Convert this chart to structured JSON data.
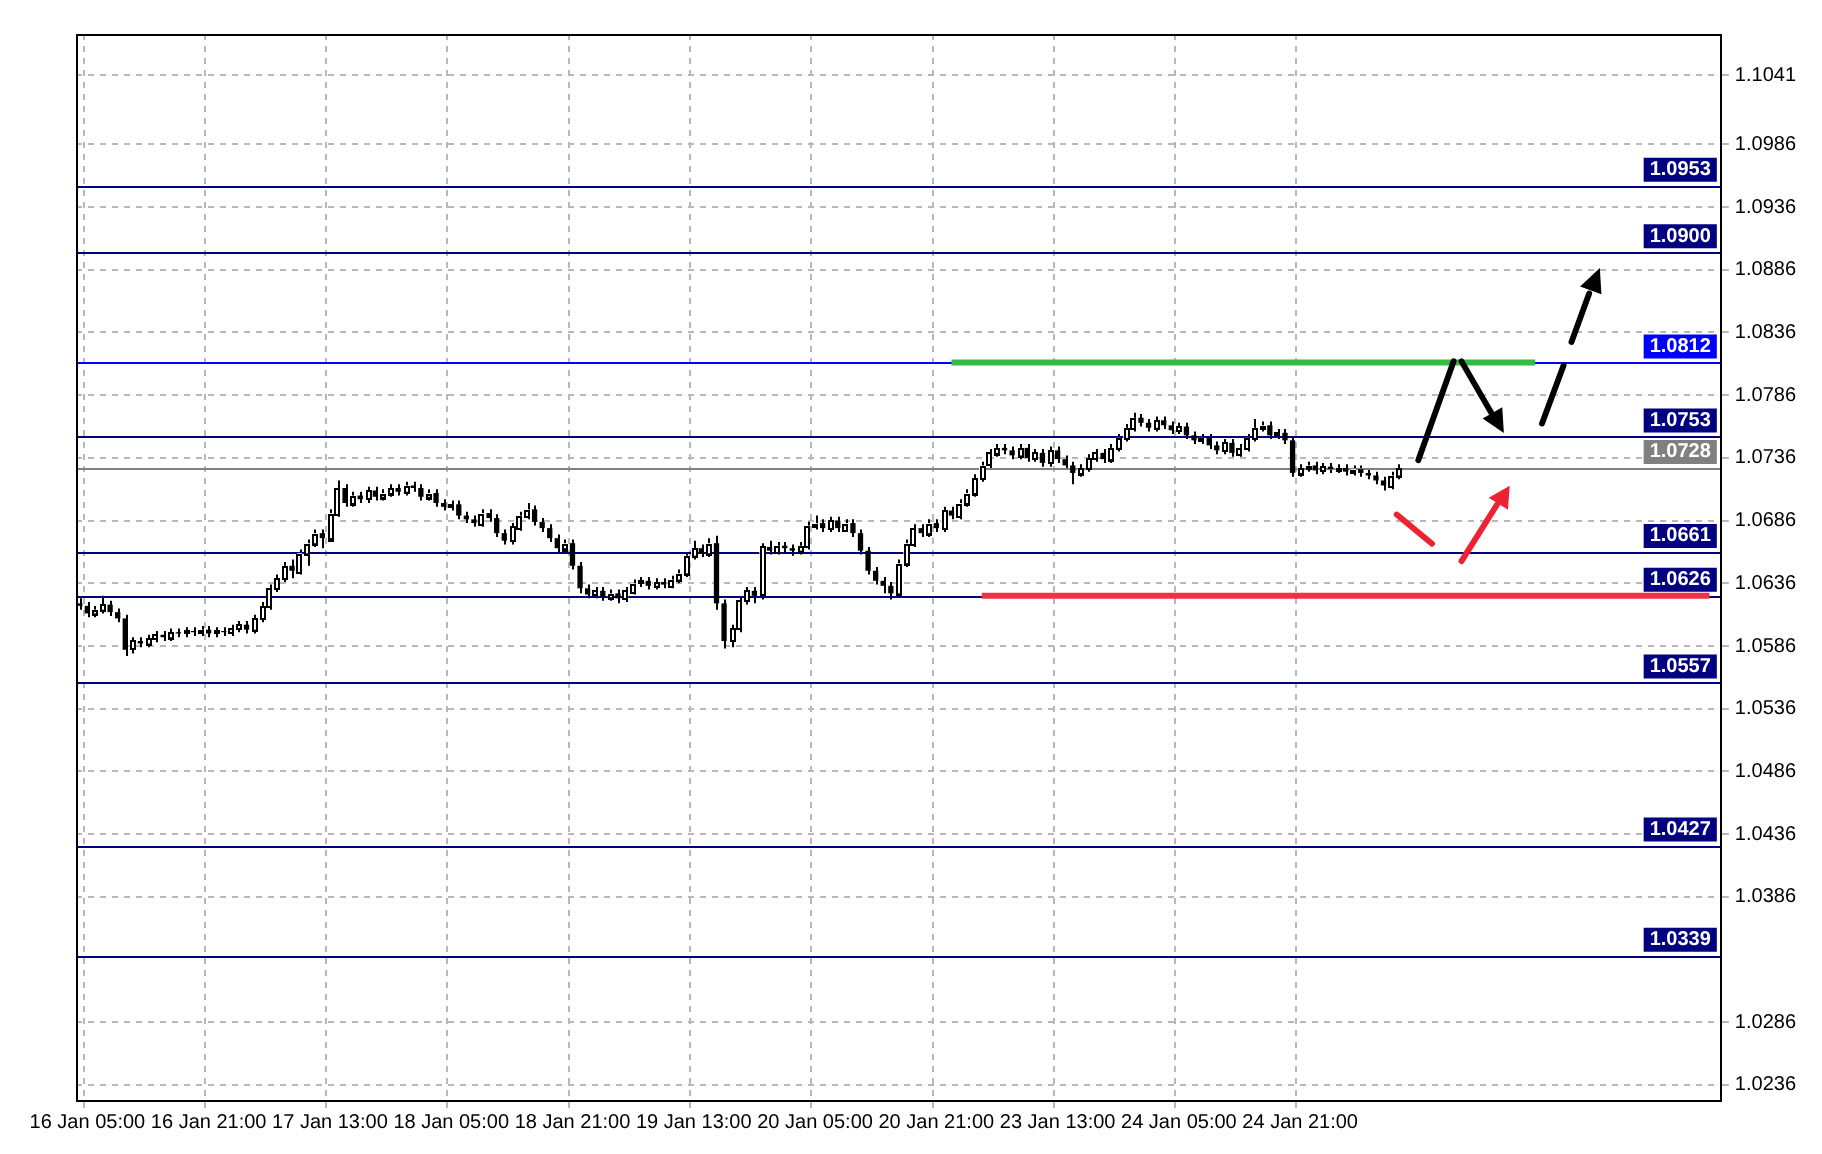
{
  "chart_data": {
    "type": "candlestick",
    "color": "#000000",
    "colors": [
      "#000000",
      "#000000",
      "#ffffff",
      "#ffffff",
      "#000000",
      "#000000",
      "#000000",
      "#ffffff",
      "#000000",
      "#ffffff",
      "#ffffff",
      "#000000",
      "#ffffff",
      "#000000",
      "#ffffff",
      "#000000",
      "#ffffff",
      "#000000",
      "#ffffff",
      "#000000",
      "#ffffff",
      "#ffffff",
      "#000000",
      "#ffffff",
      "#ffffff",
      "#ffffff",
      "#ffffff",
      "#ffffff",
      "#000000",
      "#ffffff",
      "#ffffff",
      "#ffffff",
      "#000000",
      "#ffffff",
      "#ffffff",
      "#000000",
      "#ffffff",
      "#000000",
      "#ffffff",
      "#000000",
      "#ffffff",
      "#ffffff",
      "#000000",
      "#ffffff",
      "#000000",
      "#000000",
      "#ffffff",
      "#000000",
      "#000000",
      "#ffffff",
      "#000000",
      "#000000",
      "#000000",
      "#ffffff",
      "#000000",
      "#000000",
      "#000000",
      "#ffffff",
      "#ffffff",
      "#ffffff",
      "#000000",
      "#000000",
      "#000000",
      "#000000",
      "#ffffff",
      "#000000",
      "#000000",
      "#000000",
      "#ffffff",
      "#000000",
      "#ffffff",
      "#000000",
      "#ffffff",
      "#ffffff",
      "#ffffff",
      "#000000",
      "#ffffff",
      "#000000",
      "#ffffff",
      "#ffffff",
      "#ffffff",
      "#ffffff",
      "#000000",
      "#ffffff",
      "#000000",
      "#000000",
      "#ffffff",
      "#ffffff",
      "#ffffff",
      "#000000",
      "#ffffff",
      "#000000",
      "#ffffff",
      "#000000",
      "#000000",
      "#ffffff",
      "#ffffff",
      "#ffffff",
      "#000000",
      "#ffffff",
      "#000000",
      "#ffffff",
      "#000000",
      "#000000",
      "#000000",
      "#000000",
      "#000000",
      "#000000",
      "#ffffff",
      "#ffffff",
      "#ffffff",
      "#000000",
      "#ffffff",
      "#000000",
      "#ffffff",
      "#000000",
      "#ffffff",
      "#ffffff",
      "#ffffff",
      "#ffffff",
      "#ffffff",
      "#ffffff",
      "#000000",
      "#000000",
      "#ffffff",
      "#000000",
      "#ffffff",
      "#000000",
      "#ffffff",
      "#000000",
      "#000000",
      "#000000",
      "#ffffff",
      "#ffffff",
      "#ffffff",
      "#000000",
      "#ffffff",
      "#ffffff",
      "#ffffff",
      "#ffffff",
      "#000000",
      "#000000",
      "#ffffff",
      "#000000",
      "#000000",
      "#ffffff",
      "#000000",
      "#000000",
      "#ffffff",
      "#000000",
      "#000000",
      "#ffffff",
      "#000000",
      "#ffffff",
      "#ffffff",
      "#ffffff",
      "#ffffff",
      "#000000",
      "#ffffff",
      "#000000",
      "#000000",
      "#ffffff",
      "#ffffff",
      "#000000",
      "#ffffff",
      "#000000",
      "#ffffff",
      "#000000",
      "#ffffff",
      "#000000",
      "#000000",
      "#000000",
      "#000000",
      "#ffffff",
      "#ffffff",
      null,
      null,
      null,
      null,
      null,
      null,
      null,
      null,
      null,
      null,
      null,
      null,
      null,
      null,
      null,
      null,
      null,
      null,
      null,
      null,
      null,
      null,
      null,
      null,
      null,
      null,
      null,
      null,
      null,
      null,
      null,
      null,
      null,
      null,
      null,
      null,
      null,
      null,
      null,
      null,
      null,
      null
    ],
    "categories": [
      null,
      "16 Jan 05:00",
      null,
      null,
      null,
      null,
      null,
      null,
      null,
      null,
      null,
      null,
      null,
      null,
      null,
      null,
      null,
      "16 Jan 21:00",
      null,
      null,
      null,
      null,
      null,
      null,
      null,
      null,
      null,
      null,
      null,
      null,
      null,
      null,
      null,
      "17 Jan 13:00",
      null,
      null,
      null,
      null,
      null,
      null,
      null,
      null,
      null,
      null,
      null,
      null,
      null,
      null,
      null,
      "18 Jan 05:00",
      null,
      null,
      null,
      null,
      null,
      null,
      null,
      null,
      null,
      null,
      null,
      null,
      null,
      null,
      null,
      "18 Jan 21:00",
      null,
      null,
      null,
      null,
      null,
      null,
      null,
      null,
      null,
      null,
      null,
      null,
      null,
      null,
      null,
      "19 Jan 13:00",
      null,
      null,
      null,
      null,
      null,
      null,
      null,
      null,
      null,
      null,
      null,
      null,
      null,
      null,
      null,
      "20 Jan 05:00",
      null,
      null,
      null,
      null,
      null,
      null,
      null,
      null,
      null,
      null,
      null,
      null,
      null,
      null,
      null,
      "20 Jan 21:00",
      null,
      null,
      null,
      null,
      null,
      null,
      null,
      null,
      null,
      null,
      null,
      null,
      null,
      null,
      null,
      "23 Jan 13:00",
      null,
      null,
      null,
      null,
      null,
      null,
      null,
      null,
      null,
      null,
      null,
      null,
      null,
      null,
      null,
      "24 Jan 05:00",
      null,
      null,
      null,
      null,
      null,
      null,
      null,
      null,
      null,
      null,
      null,
      null,
      null,
      null,
      null,
      "24 Jan 21:00",
      null,
      null,
      null,
      null,
      null,
      null,
      null,
      null,
      null,
      null,
      null,
      null,
      null,
      null,
      null,
      null,
      null,
      null,
      null,
      null,
      null,
      null,
      null,
      null,
      null,
      null,
      null,
      null,
      null,
      null,
      null,
      null,
      null,
      null,
      null,
      null,
      null,
      null,
      null,
      null,
      null,
      null,
      null,
      null,
      null,
      null,
      null,
      null,
      null,
      null,
      null,
      null,
      null,
      null,
      null
    ],
    "ohlc": [
      [
        1.062,
        1.0624,
        1.0615,
        1.0618
      ],
      [
        1.0618,
        1.0621,
        1.0609,
        1.0612
      ],
      [
        1.0612,
        1.0618,
        1.0609,
        1.0615
      ],
      [
        1.0615,
        1.0626,
        1.0612,
        1.0619
      ],
      [
        1.0619,
        1.0622,
        1.061,
        1.0613
      ],
      [
        1.0613,
        1.0616,
        1.0605,
        1.0608
      ],
      [
        1.0608,
        1.0611,
        1.0578,
        1.0583
      ],
      [
        1.0583,
        1.0593,
        1.058,
        1.059
      ],
      [
        1.059,
        1.0593,
        1.0585,
        1.0588
      ],
      [
        1.0588,
        1.0595,
        1.0585,
        1.0592
      ],
      [
        1.0592,
        1.0598,
        1.0589,
        1.0595
      ],
      [
        1.0595,
        1.0598,
        1.059,
        1.0593
      ],
      [
        1.0593,
        1.06,
        1.059,
        1.0597
      ],
      [
        1.0597,
        1.06,
        1.0593,
        1.0596
      ],
      [
        1.0596,
        1.0601,
        1.0593,
        1.0598
      ],
      [
        1.0598,
        1.0601,
        1.0594,
        1.0597
      ],
      [
        1.0597,
        1.0602,
        1.0594,
        1.0599
      ],
      [
        1.0599,
        1.0602,
        1.0593,
        1.0596
      ],
      [
        1.0596,
        1.0601,
        1.0593,
        1.0598
      ],
      [
        1.0598,
        1.0601,
        1.0594,
        1.0597
      ],
      [
        1.0597,
        1.0603,
        1.0594,
        1.06
      ],
      [
        1.06,
        1.0606,
        1.0597,
        1.0603
      ],
      [
        1.0603,
        1.0606,
        1.0596,
        1.0599
      ],
      [
        1.0599,
        1.0611,
        1.0596,
        1.0608
      ],
      [
        1.0608,
        1.0621,
        1.0605,
        1.0618
      ],
      [
        1.0618,
        1.0635,
        1.0615,
        1.0632
      ],
      [
        1.0632,
        1.0643,
        1.0629,
        1.064
      ],
      [
        1.064,
        1.0653,
        1.0637,
        1.065
      ],
      [
        1.065,
        1.0655,
        1.064,
        1.0646
      ],
      [
        1.0646,
        1.0663,
        1.0643,
        1.066
      ],
      [
        1.066,
        1.0671,
        1.065,
        1.0668
      ],
      [
        1.0668,
        1.0679,
        1.0665,
        1.0676
      ],
      [
        1.0676,
        1.0679,
        1.0664,
        1.0672
      ],
      [
        1.0672,
        1.0695,
        1.0669,
        1.0692
      ],
      [
        1.0692,
        1.0718,
        1.0689,
        1.0712
      ],
      [
        1.0712,
        1.0715,
        1.0697,
        1.07
      ],
      [
        1.07,
        1.0709,
        1.0697,
        1.0706
      ],
      [
        1.0706,
        1.0709,
        1.07,
        1.0703
      ],
      [
        1.0703,
        1.0713,
        1.07,
        1.071
      ],
      [
        1.071,
        1.0713,
        1.0702,
        1.0705
      ],
      [
        1.0705,
        1.0711,
        1.0702,
        1.0708
      ],
      [
        1.0708,
        1.0715,
        1.0705,
        1.0712
      ],
      [
        1.0712,
        1.0715,
        1.0706,
        1.0709
      ],
      [
        1.0709,
        1.0717,
        1.0706,
        1.0714
      ],
      [
        1.0714,
        1.0717,
        1.0709,
        1.0712
      ],
      [
        1.0712,
        1.0715,
        1.0702,
        1.0705
      ],
      [
        1.0705,
        1.0711,
        1.0702,
        1.0708
      ],
      [
        1.0708,
        1.0711,
        1.0697,
        1.07
      ],
      [
        1.07,
        1.0703,
        1.0694,
        1.0697
      ],
      [
        1.0697,
        1.0702,
        1.0694,
        1.0699
      ],
      [
        1.0699,
        1.0702,
        1.0687,
        1.069
      ],
      [
        1.069,
        1.0693,
        1.0684,
        1.0687
      ],
      [
        1.0687,
        1.069,
        1.0681,
        1.0684
      ],
      [
        1.0684,
        1.0695,
        1.0681,
        1.0692
      ],
      [
        1.0692,
        1.0695,
        1.0685,
        1.0688
      ],
      [
        1.0688,
        1.0691,
        1.0673,
        1.0676
      ],
      [
        1.0676,
        1.0679,
        1.0667,
        1.067
      ],
      [
        1.067,
        1.0684,
        1.0667,
        1.0681
      ],
      [
        1.0681,
        1.0693,
        1.0678,
        1.069
      ],
      [
        1.069,
        1.07,
        1.0687,
        1.0695
      ],
      [
        1.0695,
        1.0698,
        1.0682,
        1.0685
      ],
      [
        1.0685,
        1.0688,
        1.0677,
        1.068
      ],
      [
        1.068,
        1.0683,
        1.0669,
        1.0672
      ],
      [
        1.0672,
        1.0675,
        1.0661,
        1.0664
      ],
      [
        1.0664,
        1.0671,
        1.0661,
        1.0668
      ],
      [
        1.0668,
        1.0671,
        1.0647,
        1.065
      ],
      [
        1.065,
        1.0653,
        1.0628,
        1.0632
      ],
      [
        1.0632,
        1.0635,
        1.0624,
        1.0627
      ],
      [
        1.0627,
        1.0633,
        1.0624,
        1.063
      ],
      [
        1.063,
        1.0633,
        1.0622,
        1.0625
      ],
      [
        1.0625,
        1.0631,
        1.0622,
        1.0628
      ],
      [
        1.0628,
        1.0631,
        1.062,
        1.0624
      ],
      [
        1.0624,
        1.0633,
        1.0621,
        1.063
      ],
      [
        1.063,
        1.0639,
        1.0627,
        1.0636
      ],
      [
        1.0636,
        1.0641,
        1.0633,
        1.0638
      ],
      [
        1.0638,
        1.0641,
        1.0631,
        1.0634
      ],
      [
        1.0634,
        1.064,
        1.0631,
        1.0637
      ],
      [
        1.0637,
        1.064,
        1.0632,
        1.0635
      ],
      [
        1.0635,
        1.0642,
        1.0632,
        1.0639
      ],
      [
        1.0639,
        1.0647,
        1.0636,
        1.0644
      ],
      [
        1.0644,
        1.0661,
        1.0641,
        1.0658
      ],
      [
        1.0658,
        1.067,
        1.0655,
        1.0664
      ],
      [
        1.0664,
        1.0667,
        1.0657,
        1.066
      ],
      [
        1.066,
        1.0672,
        1.0657,
        1.0668
      ],
      [
        1.0668,
        1.0674,
        1.0615,
        1.062
      ],
      [
        1.062,
        1.0623,
        1.0584,
        1.059
      ],
      [
        1.059,
        1.0603,
        1.0585,
        1.06
      ],
      [
        1.06,
        1.0625,
        1.0597,
        1.0622
      ],
      [
        1.0622,
        1.0633,
        1.0619,
        1.063
      ],
      [
        1.063,
        1.0633,
        1.062,
        1.0626
      ],
      [
        1.0626,
        1.0668,
        1.0623,
        1.0665
      ],
      [
        1.0665,
        1.067,
        1.0659,
        1.0662
      ],
      [
        1.0662,
        1.0669,
        1.0659,
        1.0666
      ],
      [
        1.0666,
        1.0669,
        1.0661,
        1.0664
      ],
      [
        1.0664,
        1.0667,
        1.0658,
        1.0662
      ],
      [
        1.0662,
        1.0669,
        1.0659,
        1.0666
      ],
      [
        1.0666,
        1.0685,
        1.0663,
        1.0682
      ],
      [
        1.0682,
        1.069,
        1.0679,
        1.0684
      ],
      [
        1.0684,
        1.0687,
        1.0677,
        1.068
      ],
      [
        1.068,
        1.0689,
        1.0677,
        1.0686
      ],
      [
        1.0686,
        1.0689,
        1.0677,
        1.068
      ],
      [
        1.068,
        1.0687,
        1.0677,
        1.0684
      ],
      [
        1.0684,
        1.0687,
        1.0673,
        1.0676
      ],
      [
        1.0676,
        1.0679,
        1.0659,
        1.0662
      ],
      [
        1.0662,
        1.0665,
        1.0643,
        1.0646
      ],
      [
        1.0646,
        1.0649,
        1.0635,
        1.0638
      ],
      [
        1.0638,
        1.0641,
        1.0628,
        1.0634
      ],
      [
        1.0634,
        1.0637,
        1.0623,
        1.0628
      ],
      [
        1.0628,
        1.0655,
        1.0625,
        1.0652
      ],
      [
        1.0652,
        1.0671,
        1.0649,
        1.0668
      ],
      [
        1.0668,
        1.0683,
        1.0665,
        1.068
      ],
      [
        1.068,
        1.0683,
        1.0673,
        1.0676
      ],
      [
        1.0676,
        1.0687,
        1.0673,
        1.0684
      ],
      [
        1.0684,
        1.0687,
        1.0677,
        1.068
      ],
      [
        1.068,
        1.0697,
        1.0677,
        1.0694
      ],
      [
        1.0694,
        1.0697,
        1.0687,
        1.069
      ],
      [
        1.069,
        1.0703,
        1.0687,
        1.07
      ],
      [
        1.07,
        1.0711,
        1.0697,
        1.0708
      ],
      [
        1.0708,
        1.0723,
        1.0705,
        1.072
      ],
      [
        1.072,
        1.0733,
        1.0717,
        1.073
      ],
      [
        1.073,
        1.0743,
        1.0727,
        1.074
      ],
      [
        1.074,
        1.0747,
        1.0737,
        1.0744
      ],
      [
        1.0744,
        1.0747,
        1.0739,
        1.0742
      ],
      [
        1.0742,
        1.0745,
        1.0735,
        1.0738
      ],
      [
        1.0738,
        1.0747,
        1.0735,
        1.0744
      ],
      [
        1.0744,
        1.0747,
        1.0733,
        1.0736
      ],
      [
        1.0736,
        1.0743,
        1.0733,
        1.074
      ],
      [
        1.074,
        1.0743,
        1.0729,
        1.0732
      ],
      [
        1.0732,
        1.0745,
        1.0729,
        1.0742
      ],
      [
        1.0742,
        1.0745,
        1.0732,
        1.0735
      ],
      [
        1.0735,
        1.0738,
        1.0727,
        1.073
      ],
      [
        1.073,
        1.0733,
        1.0715,
        1.0724
      ],
      [
        1.0724,
        1.0731,
        1.0721,
        1.0728
      ],
      [
        1.0728,
        1.0739,
        1.0725,
        1.0736
      ],
      [
        1.0736,
        1.0743,
        1.0733,
        1.074
      ],
      [
        1.074,
        1.0743,
        1.0732,
        1.0735
      ],
      [
        1.0735,
        1.0747,
        1.0732,
        1.0744
      ],
      [
        1.0744,
        1.0755,
        1.0741,
        1.0752
      ],
      [
        1.0752,
        1.0763,
        1.0749,
        1.076
      ],
      [
        1.076,
        1.0772,
        1.0757,
        1.0768
      ],
      [
        1.0768,
        1.0771,
        1.0761,
        1.0764
      ],
      [
        1.0764,
        1.0767,
        1.0757,
        1.076
      ],
      [
        1.076,
        1.0769,
        1.0757,
        1.0766
      ],
      [
        1.0766,
        1.0769,
        1.0759,
        1.0762
      ],
      [
        1.0762,
        1.0765,
        1.0755,
        1.0758
      ],
      [
        1.0758,
        1.0764,
        1.0755,
        1.0761
      ],
      [
        1.0761,
        1.0764,
        1.0751,
        1.0754
      ],
      [
        1.0754,
        1.0757,
        1.0747,
        1.075
      ],
      [
        1.075,
        1.0755,
        1.0747,
        1.0752
      ],
      [
        1.0752,
        1.0755,
        1.0743,
        1.0746
      ],
      [
        1.0746,
        1.0749,
        1.0739,
        1.0742
      ],
      [
        1.0742,
        1.0751,
        1.0739,
        1.0748
      ],
      [
        1.0748,
        1.0751,
        1.0737,
        1.074
      ],
      [
        1.074,
        1.0747,
        1.0737,
        1.0744
      ],
      [
        1.0744,
        1.0755,
        1.0741,
        1.0752
      ],
      [
        1.0752,
        1.0767,
        1.0749,
        1.076
      ],
      [
        1.076,
        1.0765,
        1.0757,
        1.0762
      ],
      [
        1.0762,
        1.0765,
        1.0751,
        1.0754
      ],
      [
        1.0754,
        1.0759,
        1.0751,
        1.0756
      ],
      [
        1.0756,
        1.0759,
        1.0747,
        1.075
      ],
      [
        1.075,
        1.0753,
        1.0721,
        1.0724
      ],
      [
        1.0724,
        1.0731,
        1.0721,
        1.0728
      ],
      [
        1.0728,
        1.0733,
        1.0725,
        1.073
      ],
      [
        1.073,
        1.0733,
        1.0723,
        1.0726
      ],
      [
        1.0726,
        1.0732,
        1.0723,
        1.0729
      ],
      [
        1.0729,
        1.0732,
        1.0724,
        1.0727
      ],
      [
        1.0727,
        1.0731,
        1.0724,
        1.0728
      ],
      [
        1.0728,
        1.0731,
        1.0722,
        1.0725
      ],
      [
        1.0725,
        1.073,
        1.0722,
        1.0727
      ],
      [
        1.0727,
        1.073,
        1.0721,
        1.0724
      ],
      [
        1.0724,
        1.0727,
        1.0719,
        1.0722
      ],
      [
        1.0722,
        1.0725,
        1.0715,
        1.0718
      ],
      [
        1.0718,
        1.0721,
        1.071,
        1.0714
      ],
      [
        1.0714,
        1.0725,
        1.0711,
        1.0722
      ],
      [
        1.0722,
        1.0731,
        1.0719,
        1.0728
      ],
      null,
      null,
      null,
      null,
      null,
      null,
      null,
      null,
      null,
      null,
      null,
      null,
      null,
      null,
      null,
      null,
      null,
      null,
      null,
      null,
      null,
      null,
      null,
      null,
      null,
      null,
      null,
      null,
      null,
      null,
      null,
      null,
      null,
      null,
      null,
      null,
      null,
      null,
      null,
      null,
      null,
      null
    ],
    "series": [
      {
        "type": "line",
        "color": "#33bb44",
        "values": [
          null,
          null,
          null,
          null,
          null,
          null,
          null,
          null,
          null,
          null,
          null,
          null,
          null,
          null,
          null,
          null,
          null,
          null,
          null,
          null,
          null,
          null,
          null,
          null,
          null,
          null,
          null,
          null,
          null,
          null,
          null,
          null,
          null,
          null,
          null,
          null,
          null,
          null,
          null,
          null,
          null,
          null,
          null,
          null,
          null,
          null,
          null,
          null,
          null,
          null,
          null,
          null,
          null,
          null,
          null,
          null,
          null,
          null,
          null,
          null,
          null,
          null,
          null,
          null,
          null,
          null,
          null,
          null,
          null,
          null,
          null,
          null,
          null,
          null,
          null,
          null,
          null,
          null,
          null,
          null,
          null,
          null,
          null,
          null,
          null,
          null,
          null,
          null,
          null,
          null,
          null,
          null,
          null,
          null,
          null,
          null,
          null,
          null,
          null,
          null,
          null,
          null,
          null,
          null,
          null,
          null,
          null,
          null,
          null,
          null,
          null,
          null,
          null,
          null,
          null,
          1.0812,
          1.0812,
          1.0812,
          1.0812,
          1.0812,
          1.0812,
          1.0812,
          1.0812,
          1.0812,
          1.0812,
          1.0812,
          1.0812,
          1.0812,
          1.0812,
          1.0812,
          1.0812,
          1.0812,
          1.0812,
          1.0812,
          1.0812,
          1.0812,
          1.0812,
          1.0812,
          1.0812,
          1.0812,
          1.0812,
          1.0812,
          1.0812,
          1.0812,
          1.0812,
          1.0812,
          1.0812,
          1.0812,
          1.0812,
          1.0812,
          1.0812,
          1.0812,
          1.0812,
          1.0812,
          1.0812,
          1.0812,
          1.0812,
          1.0812,
          1.0812,
          1.0812,
          1.0812,
          1.0812,
          1.0812,
          1.0812,
          1.0812,
          1.0812,
          1.0812,
          1.0812,
          1.0812,
          1.0812,
          1.0812,
          1.0812,
          1.0812,
          1.0812,
          1.0812,
          1.0812,
          1.0812,
          1.0812,
          1.0812,
          1.0812,
          1.0812,
          1.0812,
          1.0812,
          1.0812,
          1.0812,
          1.0812,
          1.0812,
          1.0812,
          1.0812,
          1.0812,
          1.0812,
          1.0812,
          1.0812,
          null,
          null,
          null,
          null,
          null,
          null,
          null,
          null,
          null,
          null,
          null,
          null,
          null,
          null,
          null,
          null,
          null,
          null,
          null,
          null,
          null,
          null,
          null,
          null
        ]
      },
      {
        "type": "line",
        "color": "#ee3344",
        "values": [
          null,
          null,
          null,
          null,
          null,
          null,
          null,
          null,
          null,
          null,
          null,
          null,
          null,
          null,
          null,
          null,
          null,
          null,
          null,
          null,
          null,
          null,
          null,
          null,
          null,
          null,
          null,
          null,
          null,
          null,
          null,
          null,
          null,
          null,
          null,
          null,
          null,
          null,
          null,
          null,
          null,
          null,
          null,
          null,
          null,
          null,
          null,
          null,
          null,
          null,
          null,
          null,
          null,
          null,
          null,
          null,
          null,
          null,
          null,
          null,
          null,
          null,
          null,
          null,
          null,
          null,
          null,
          null,
          null,
          null,
          null,
          null,
          null,
          null,
          null,
          null,
          null,
          null,
          null,
          null,
          null,
          null,
          null,
          null,
          null,
          null,
          null,
          null,
          null,
          null,
          null,
          null,
          null,
          null,
          null,
          null,
          null,
          null,
          null,
          null,
          null,
          null,
          null,
          null,
          null,
          null,
          null,
          null,
          null,
          null,
          null,
          null,
          null,
          null,
          null,
          null,
          null,
          null,
          null,
          1.0626,
          1.0626,
          1.0626,
          1.0626,
          1.0626,
          1.0626,
          1.0626,
          1.0626,
          1.0626,
          1.0626,
          1.0626,
          1.0626,
          1.0626,
          1.0626,
          1.0626,
          1.0626,
          1.0626,
          1.0626,
          1.0626,
          1.0626,
          1.0626,
          1.0626,
          1.0626,
          1.0626,
          1.0626,
          1.0626,
          1.0626,
          1.0626,
          1.0626,
          1.0626,
          1.0626,
          1.0626,
          1.0626,
          1.0626,
          1.0626,
          1.0626,
          1.0626,
          1.0626,
          1.0626,
          1.0626,
          1.0626,
          1.0626,
          1.0626,
          1.0626,
          1.0626,
          1.0626,
          1.0626,
          1.0626,
          1.0626,
          1.0626,
          1.0626,
          1.0626,
          1.0626,
          1.0626,
          1.0626,
          1.0626,
          1.0626,
          1.0626,
          1.0626,
          1.0626,
          1.0626,
          1.0626,
          1.0626,
          1.0626,
          1.0626,
          1.0626,
          1.0626,
          1.0626,
          1.0626,
          1.0626,
          1.0626,
          1.0626,
          1.0626,
          1.0626,
          1.0626,
          1.0626,
          1.0626,
          1.0626,
          1.0626,
          1.0626,
          1.0626,
          1.0626,
          1.0626,
          1.0626,
          1.0626,
          1.0626,
          1.0626,
          1.0626,
          1.0626,
          1.0626,
          1.0626,
          1.0626,
          1.0626,
          1.0626,
          1.0626,
          1.0626,
          1.0626,
          null
        ]
      }
    ],
    "ylim": [
      1.0224,
      1.1074
    ],
    "yticks": [
      1.0236,
      1.0286,
      1.0386,
      1.0436,
      1.0486,
      1.0536,
      1.0586,
      1.0636,
      1.0686,
      1.0736,
      1.0786,
      1.0836,
      1.0886,
      1.0936,
      1.0986,
      1.1041
    ],
    "ref_lines": [
      {
        "axis": "y",
        "value": 1.0953,
        "label": "1.0953",
        "color": "#000080"
      },
      {
        "axis": "y",
        "value": 1.09,
        "label": "1.0900",
        "color": "#000080"
      },
      {
        "axis": "y",
        "value": 1.0812,
        "label": "1.0812",
        "color": "#0000ff"
      },
      {
        "axis": "y",
        "value": 1.0753,
        "label": "1.0753",
        "color": "#000080"
      },
      {
        "axis": "y",
        "value": 1.0728,
        "label": "1.0728",
        "color": "#808080"
      },
      {
        "axis": "y",
        "value": 1.0661,
        "label": "1.0661",
        "color": "#000080"
      },
      {
        "axis": "y",
        "value": 1.0626,
        "label": "1.0626",
        "color": "#000080"
      },
      {
        "axis": "y",
        "value": 1.0557,
        "label": "1.0557",
        "color": "#000080"
      },
      {
        "axis": "y",
        "value": 1.0427,
        "label": "1.0427",
        "color": "#000080"
      },
      {
        "axis": "y",
        "value": 1.0339,
        "label": "1.0339",
        "color": "#000080"
      }
    ],
    "grid": true,
    "legend": false
  }
}
